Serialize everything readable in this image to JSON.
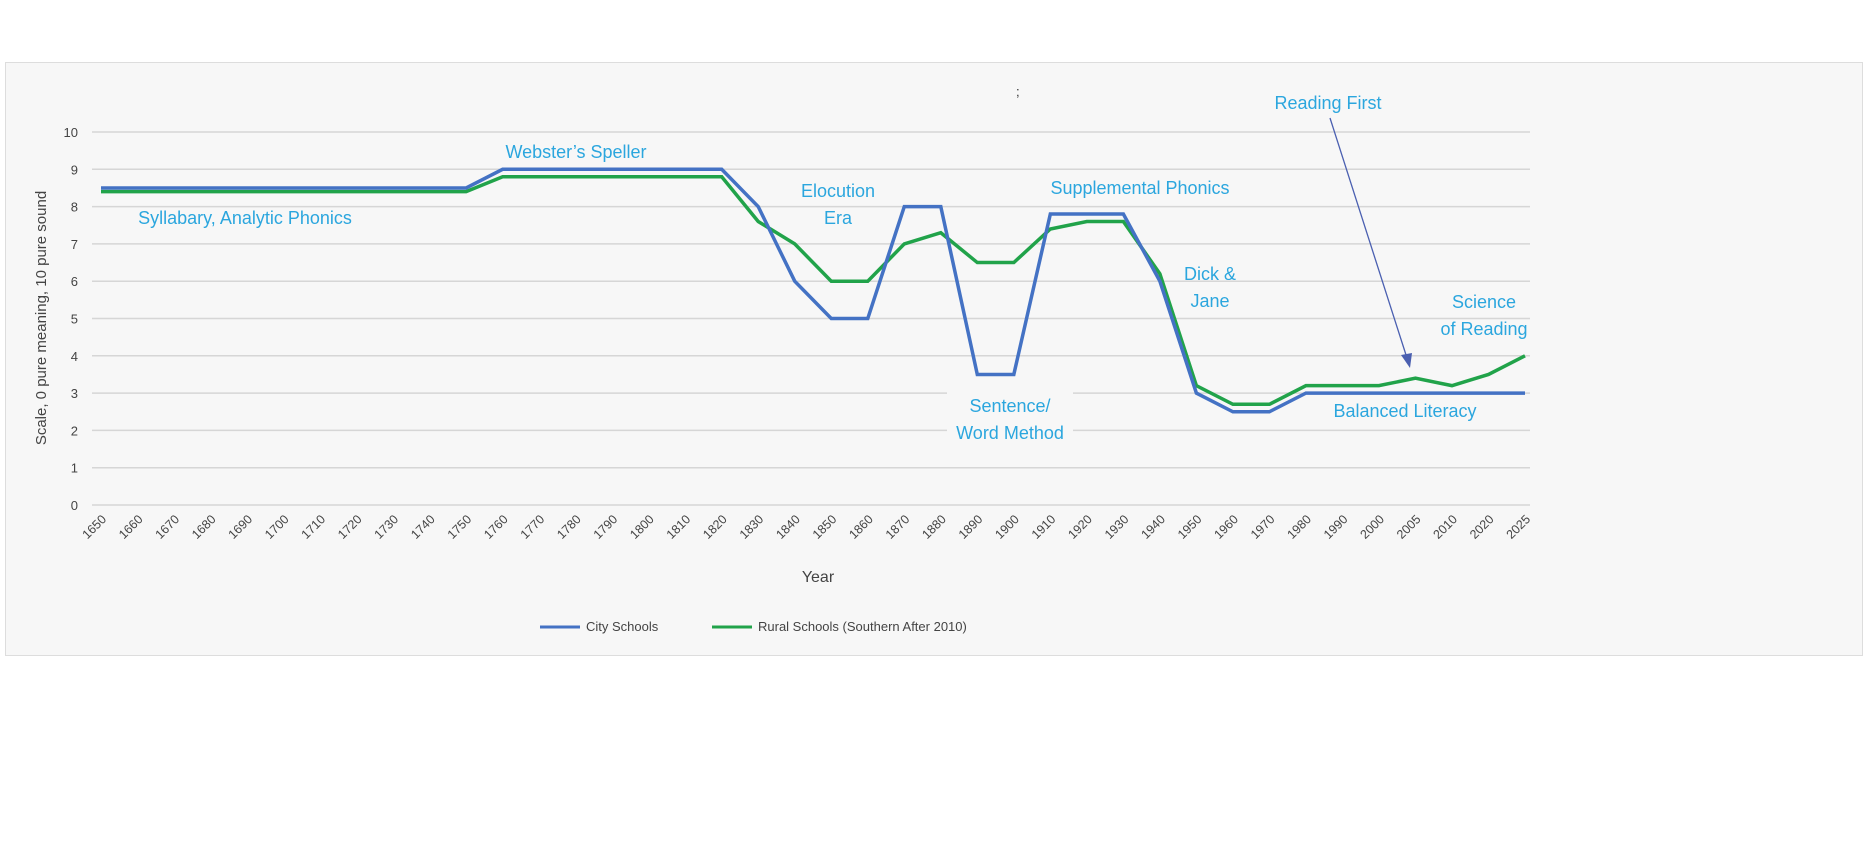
{
  "chart_data": {
    "type": "line",
    "title": "",
    "xlabel": "Year",
    "ylabel": "Scale, 0 pure meaning, 10 pure sound",
    "ylim": [
      0,
      10
    ],
    "yticks": [
      0,
      1,
      2,
      3,
      4,
      5,
      6,
      7,
      8,
      9,
      10
    ],
    "grid": true,
    "legend_position": "bottom",
    "categories": [
      "1650",
      "1660",
      "1670",
      "1680",
      "1690",
      "1700",
      "1710",
      "1720",
      "1730",
      "1740",
      "1750",
      "1760",
      "1770",
      "1780",
      "1790",
      "1800",
      "1810",
      "1820",
      "1830",
      "1840",
      "1850",
      "1860",
      "1870",
      "1880",
      "1890",
      "1900",
      "1910",
      "1920",
      "1930",
      "1940",
      "1950",
      "1960",
      "1970",
      "1980",
      "1990",
      "2000",
      "2005",
      "2010",
      "2020",
      "2025"
    ],
    "series": [
      {
        "name": "City Schools",
        "color": "#4472C4",
        "values": [
          8.5,
          8.5,
          8.5,
          8.5,
          8.5,
          8.5,
          8.5,
          8.5,
          8.5,
          8.5,
          8.5,
          9,
          9,
          9,
          9,
          9,
          9,
          9,
          8,
          6,
          5,
          5,
          8,
          8,
          3.5,
          3.5,
          7.8,
          7.8,
          7.8,
          6,
          3,
          2.5,
          2.5,
          3,
          3,
          3,
          3,
          3,
          3,
          3
        ]
      },
      {
        "name": "Rural Schools (Southern After 2010)",
        "color": "#21A34A",
        "values": [
          8.4,
          8.4,
          8.4,
          8.4,
          8.4,
          8.4,
          8.4,
          8.4,
          8.4,
          8.4,
          8.4,
          8.8,
          8.8,
          8.8,
          8.8,
          8.8,
          8.8,
          8.8,
          7.6,
          7,
          6,
          6,
          7,
          7.3,
          6.5,
          6.5,
          7.4,
          7.6,
          7.6,
          6.2,
          3.2,
          2.7,
          2.7,
          3.2,
          3.2,
          3.2,
          3.4,
          3.2,
          3.5,
          4
        ]
      }
    ],
    "annotations": [
      {
        "text": [
          "Syllabary, Analytic Phonics"
        ],
        "near": "1700"
      },
      {
        "text": [
          "Webster’s Speller"
        ],
        "near": "1780"
      },
      {
        "text": [
          "Elocution",
          "Era"
        ],
        "near": "1850"
      },
      {
        "text": [
          "Supplemental Phonics"
        ],
        "near": "1920"
      },
      {
        "text": [
          "Sentence/",
          "Word Method"
        ],
        "near": "1895"
      },
      {
        "text": [
          "Dick &",
          "Jane"
        ],
        "near": "1950"
      },
      {
        "text": [
          "Reading First"
        ],
        "near": "2005",
        "arrow": true
      },
      {
        "text": [
          "Balanced Literacy"
        ],
        "near": "1995"
      },
      {
        "text": [
          "Science",
          "of Reading"
        ],
        "near": "2020"
      }
    ],
    "annotation_color": "#2BA6DE",
    "stray_mark": ";"
  }
}
